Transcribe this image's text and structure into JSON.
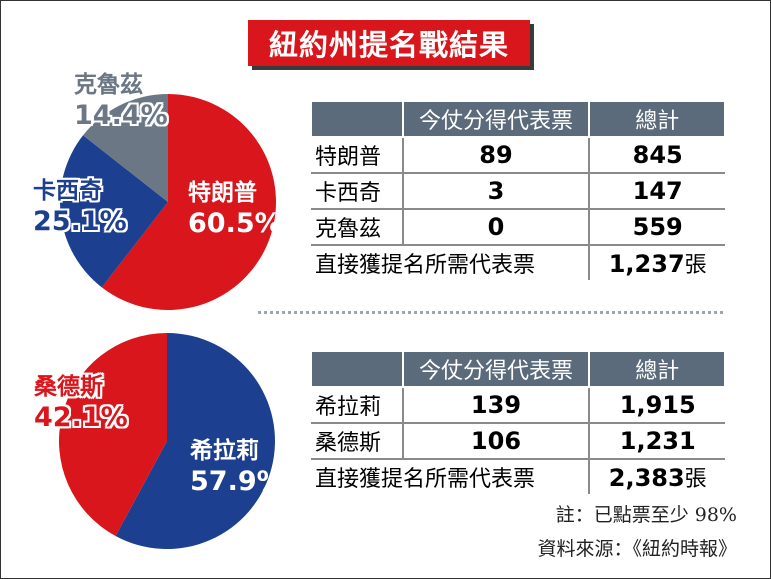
{
  "title": "紐約州提名戰結果",
  "table_headers": {
    "delegates": "今仗分得代表票",
    "total": "總計"
  },
  "total_row_label": "直接獲提名所需代表票",
  "unit": "張",
  "colors": {
    "red": "#d8161c",
    "blue": "#1d3f8f",
    "gray": "#6b7785",
    "header": "#5b6b7b"
  },
  "chart_data": [
    {
      "type": "pie",
      "title": "",
      "labels": [
        "特朗普",
        "卡西奇",
        "克魯茲"
      ],
      "values": [
        60.5,
        25.1,
        14.4
      ],
      "value_labels": [
        "60.5%",
        "25.1%",
        "14.4%"
      ],
      "colors": [
        "#d8161c",
        "#1d3f8f",
        "#6b7785"
      ]
    },
    {
      "type": "table",
      "columns": [
        "",
        "今仗分得代表票",
        "總計"
      ],
      "rows": [
        {
          "name": "特朗普",
          "delegates": "89",
          "total": "845"
        },
        {
          "name": "卡西奇",
          "delegates": "3",
          "total": "147"
        },
        {
          "name": "克魯茲",
          "delegates": "0",
          "total": "559"
        }
      ],
      "required_label": "直接獲提名所需代表票",
      "required_value": "1,237",
      "required_unit": "張"
    },
    {
      "type": "pie",
      "title": "",
      "labels": [
        "希拉莉",
        "桑德斯"
      ],
      "values": [
        57.9,
        42.1
      ],
      "value_labels": [
        "57.9%",
        "42.1%"
      ],
      "colors": [
        "#1d3f8f",
        "#d8161c"
      ]
    },
    {
      "type": "table",
      "columns": [
        "",
        "今仗分得代表票",
        "總計"
      ],
      "rows": [
        {
          "name": "希拉莉",
          "delegates": "139",
          "total": "1,915"
        },
        {
          "name": "桑德斯",
          "delegates": "106",
          "total": "1,231"
        }
      ],
      "required_label": "直接獲提名所需代表票",
      "required_value": "2,383",
      "required_unit": "張"
    }
  ],
  "note": "註：已點票至少 98%",
  "source": "資料來源：《紐約時報》"
}
